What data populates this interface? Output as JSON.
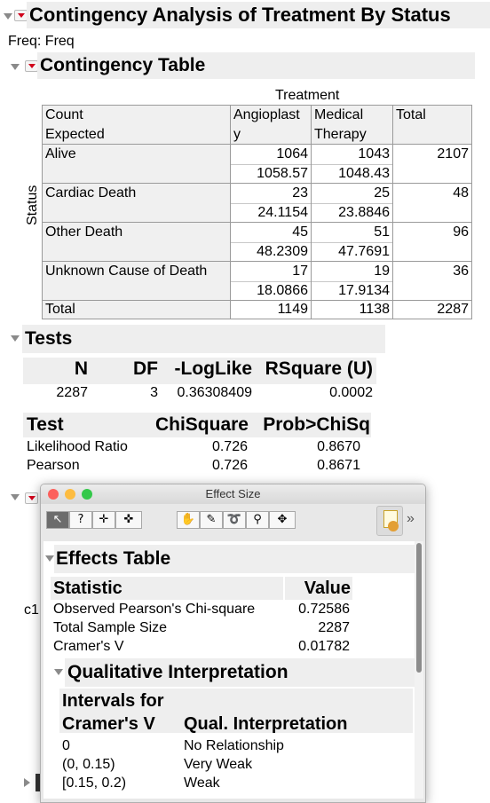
{
  "report": {
    "title": "Contingency Analysis of Treatment By Status",
    "freq_label": "Freq: Freq"
  },
  "contingency": {
    "title": "Contingency Table",
    "col_group_label": "Treatment",
    "row_group_label": "Status",
    "corner_lines": [
      "Count",
      "Expected"
    ],
    "columns": [
      {
        "line1": "Angioplast",
        "line2": "y"
      },
      {
        "line1": "Medical",
        "line2": "Therapy"
      },
      {
        "line1": "Total",
        "line2": ""
      }
    ],
    "rows": [
      {
        "label": "Alive",
        "count": [
          "1064",
          "1043",
          "2107"
        ],
        "expected": [
          "1058.57",
          "1048.43"
        ]
      },
      {
        "label": "Cardiac Death",
        "count": [
          "23",
          "25",
          "48"
        ],
        "expected": [
          "24.1154",
          "23.8846"
        ]
      },
      {
        "label": "Other Death",
        "count": [
          "45",
          "51",
          "96"
        ],
        "expected": [
          "48.2309",
          "47.7691"
        ]
      },
      {
        "label": "Unknown Cause of Death",
        "count": [
          "17",
          "19",
          "36"
        ],
        "expected": [
          "18.0866",
          "17.9134"
        ]
      }
    ],
    "total_row": {
      "label": "Total",
      "values": [
        "1149",
        "1138",
        "2287"
      ]
    }
  },
  "tests": {
    "title": "Tests",
    "summary_headers": [
      "N",
      "DF",
      "-LogLike",
      "RSquare (U)"
    ],
    "summary_values": [
      "2287",
      "3",
      "0.36308409",
      "0.0002"
    ],
    "test_headers": [
      "Test",
      "ChiSquare",
      "Prob>ChiSq"
    ],
    "test_rows": [
      {
        "test": "Likelihood Ratio",
        "chisq": "0.726",
        "prob": "0.8670"
      },
      {
        "test": "Pearson",
        "chisq": "0.726",
        "prob": "0.8671"
      }
    ]
  },
  "background_fragment": "c1",
  "popup": {
    "window_title": "Effect Size",
    "traffic_colors": [
      "#fc605c",
      "#fdbc40",
      "#34c84a"
    ],
    "toolbar_tools": [
      "arrow-tool",
      "help-tool",
      "crosshair-tool",
      "grabber-tool",
      "hand-tool",
      "brush-tool",
      "lasso-tool",
      "zoom-tool",
      "selection-tool"
    ],
    "effects_table": {
      "title": "Effects Table",
      "headers": [
        "Statistic",
        "Value"
      ],
      "rows": [
        {
          "stat": "Observed Pearson's Chi-square",
          "value": "0.72586"
        },
        {
          "stat": "Total Sample Size",
          "value": "2287"
        },
        {
          "stat": "Cramer's V",
          "value": "0.01782"
        }
      ]
    },
    "qualitative": {
      "title": "Qualitative Interpretation",
      "header_col1_line1": "Intervals for",
      "header_col1_line2": "Cramer's V",
      "header_col2": "Qual. Interpretation",
      "rows": [
        {
          "interval": "0",
          "interp": "No Relationship"
        },
        {
          "interval": "(0, 0.15)",
          "interp": "Very Weak"
        },
        {
          "interval": "[0.15, 0.2)",
          "interp": "Weak"
        }
      ]
    }
  }
}
